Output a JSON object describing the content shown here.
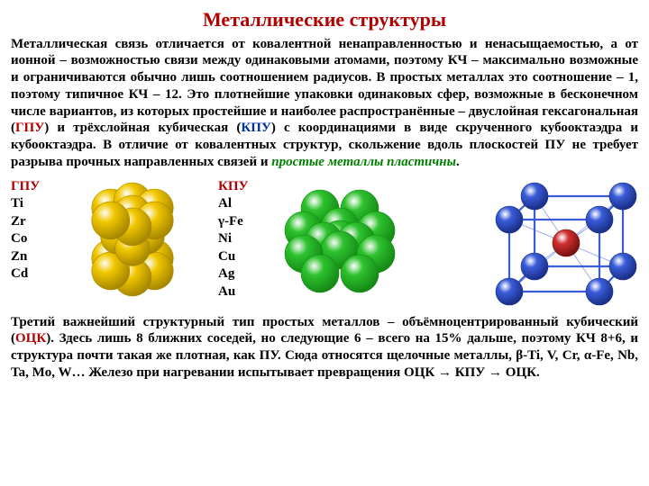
{
  "title": "Металлические структуры",
  "para1_parts": {
    "a": "Металлическая связь отличается от ковалентной ненаправленностью и ненасыщаемостью, а от ионной – возможностью связи между одинаковыми атомами, поэтому КЧ – максимально возможные и ограничиваются обычно лишь соотношением радиусов. В простых металлах это соотношение – 1, поэтому типичное КЧ – 12. Это плотнейшие упаковки одинаковых сфер, возможные в бесконечном числе вариантов, из которых простейшие и наиболее распространённые – двуслойная гексагональная (",
    "gpu": "ГПУ",
    "b": ") и трёхслойная кубическая (",
    "kpu": "КПУ",
    "c": ") с координациями в виде скрученного кубооктаэдра и кубооктаэдра. В отличие от ковалентных структур, скольжение вдоль плоскостей ПУ не требует разрыва прочных направленных связей и ",
    "plast": "простые металлы пластичны",
    "d": "."
  },
  "gpu": {
    "hdr": "ГПУ",
    "items": [
      "Ti",
      "Zr",
      "Co",
      "Zn",
      "Cd"
    ]
  },
  "kpu": {
    "hdr": "КПУ",
    "items": [
      "Al",
      "γ-Fe",
      "Ni",
      "Cu",
      "Ag",
      "Au"
    ]
  },
  "fig": {
    "gpu_color": "#f2c800",
    "gpu_stroke": "#a88800",
    "kpu_color": "#2ec22e",
    "kpu_stroke": "#158a15",
    "bcc_vertex": "#3a5cd8",
    "bcc_center": "#d03030",
    "bcc_edge": "#3a5cd8",
    "r": 21
  },
  "para2_parts": {
    "a": "Третий важнейший структурный тип простых металлов – объёмноцентрированный кубический (",
    "otsk": "ОЦК",
    "b": "). Здесь лишь 8 ближних соседей, но следующие 6 – всего на 15% дальше, поэтому КЧ 8+6, и структура почти такая же плотная, как ПУ. Сюда относятся щелочные металлы, β-Ti, V, Cr, α-Fe, Nb, Ta, Mo, W… Железо при нагревании испытывает превращения ОЦК → КПУ → ОЦК."
  }
}
